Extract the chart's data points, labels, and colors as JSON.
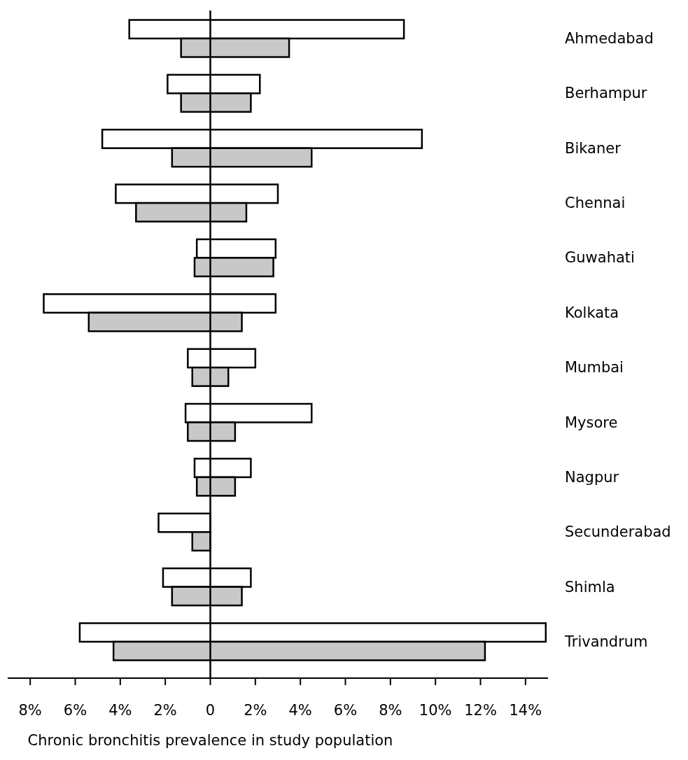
{
  "chart_data": {
    "type": "bar",
    "orientation": "horizontal",
    "xlabel": "Chronic bronchitis prevalence in study population",
    "categories": [
      "Ahmedabad",
      "Berhampur",
      "Bikaner",
      "Chennai",
      "Guwahati",
      "Kolkata",
      "Mumbai",
      "Mysore",
      "Nagpur",
      "Secunderabad",
      "Shimla",
      "Trivandrum"
    ],
    "series": [
      {
        "color": "#ffffff",
        "base": [
          -3.6,
          -1.9,
          -4.8,
          -4.2,
          -0.6,
          -7.4,
          -1.0,
          -1.1,
          -0.7,
          -2.3,
          -2.1,
          -5.8
        ],
        "values": [
          12.2,
          4.1,
          14.2,
          7.2,
          3.5,
          10.3,
          3.0,
          5.6,
          2.5,
          2.3,
          3.9,
          20.7
        ]
      },
      {
        "color": "#c8c8c8",
        "base": [
          -1.3,
          -1.3,
          -1.7,
          -3.3,
          -0.7,
          -5.4,
          -0.8,
          -1.0,
          -0.6,
          -0.8,
          -1.7,
          -4.3
        ],
        "values": [
          4.8,
          3.1,
          6.2,
          4.9,
          3.5,
          6.8,
          1.6,
          2.1,
          1.7,
          0.8,
          3.1,
          16.5
        ]
      }
    ],
    "xlim": [
      -9,
      15
    ],
    "xticks": [
      {
        "value": -8,
        "label": "8%"
      },
      {
        "value": -6,
        "label": "6%"
      },
      {
        "value": -4,
        "label": "4%"
      },
      {
        "value": -2,
        "label": "2%"
      },
      0,
      {
        "value": 2,
        "label": "2%"
      },
      {
        "value": 4,
        "label": "4%"
      },
      {
        "value": 6,
        "label": "6%"
      },
      {
        "value": 8,
        "label": "8%"
      },
      {
        "value": 10,
        "label": "10%"
      },
      {
        "value": 12,
        "label": "12%"
      },
      {
        "value": 14,
        "label": "14%"
      }
    ]
  }
}
